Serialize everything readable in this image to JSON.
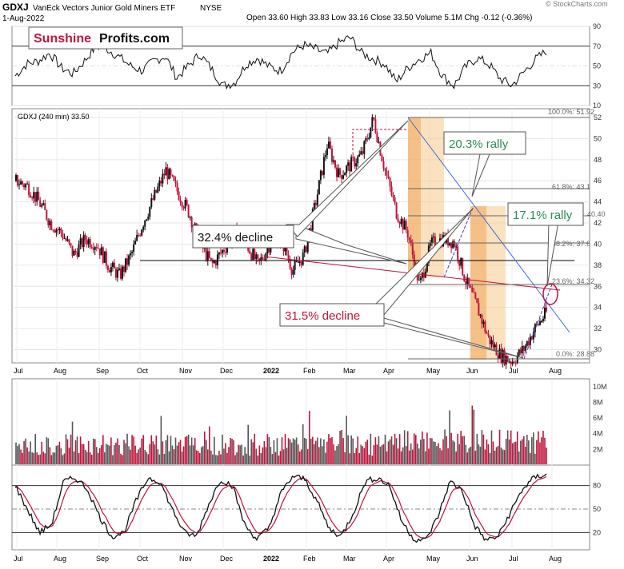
{
  "header": {
    "ticker": "GDXJ",
    "name": "VanEck Vectors Junior Gold Miners ETF",
    "exchange": "NYSE",
    "date": "1-Aug-2022",
    "ohlc": "Open 33.60   High 33.83   Low 33.16   Close 33.50   Volume 5.1M   Chg -0.12 (-0.36%)",
    "source": "© StockCharts.com"
  },
  "logo": {
    "part1": "Sunshine",
    "part2": "Profits.com"
  },
  "price_panel_label": "GDXJ (240 min) 33.50",
  "colors": {
    "up": "#111111",
    "down": "#c0143c",
    "rsi_line": "#111111",
    "stoch_fast": "#111111",
    "stoch_slow": "#c0143c",
    "trend_blue": "#3a6fd8",
    "support_red": "#c0143c",
    "shade": "#f5c88a",
    "shade_dark": "#f0a050",
    "rally_green": "#2e8b57"
  },
  "annotations": {
    "decline1": "32.4% decline",
    "decline2": "31.5% decline",
    "rally1": "20.3% rally",
    "rally2": "17.1% rally",
    "fib_100": "100.0%: 51.92",
    "fib_618": "61.8%: 43.1",
    "fib_382": "38.2%: 37.6",
    "fib_236": "23.6%: 34.32",
    "fib_0": "0.0%: 28.88",
    "fib_extra": "40.40"
  },
  "chart_data": [
    {
      "type": "line",
      "panel": "RSI",
      "ylim": [
        10,
        90
      ],
      "y_ticks": [
        10,
        30,
        50,
        70,
        90
      ],
      "approx_values": [
        40,
        52,
        55,
        63,
        48,
        42,
        55,
        70,
        67,
        59,
        50,
        45,
        55,
        60,
        38,
        50,
        62,
        47,
        30,
        33,
        52,
        58,
        49,
        45,
        64,
        71,
        67,
        62,
        73,
        79,
        63,
        57,
        52,
        34,
        48,
        57,
        63,
        40,
        30,
        49,
        58,
        52,
        37,
        30,
        43,
        56,
        65
      ]
    },
    {
      "type": "candlestick",
      "panel": "Price",
      "title": "GDXJ (240 min) 33.50",
      "ylim": [
        28,
        52
      ],
      "y_ticks": [
        30,
        32,
        34,
        36,
        38,
        40,
        42,
        44,
        46,
        48,
        50,
        52
      ],
      "x_ticks": [
        "Jul",
        "Aug",
        "Sep",
        "Oct",
        "Nov",
        "Dec",
        "2022",
        "Feb",
        "Mar",
        "Apr",
        "May",
        "Jun",
        "Jul",
        "Aug"
      ],
      "approx_close_path": [
        46.0,
        45.5,
        44.0,
        42.0,
        41.0,
        39.0,
        40.5,
        40.0,
        38.0,
        37.0,
        39.0,
        42.0,
        44.5,
        47.0,
        45.0,
        43.0,
        40.0,
        38.0,
        39.5,
        41.0,
        40.0,
        38.0,
        40.0,
        40.5,
        37.5,
        39.0,
        44.0,
        49.5,
        46.5,
        47.5,
        48.5,
        51.9,
        47.0,
        43.0,
        41.0,
        36.0,
        40.0,
        40.5,
        40.2,
        36.5,
        34.0,
        31.0,
        29.5,
        28.9,
        30.0,
        32.0,
        33.5
      ]
    },
    {
      "type": "bar",
      "panel": "Volume",
      "ylim": [
        0,
        11000000
      ],
      "y_tick_labels": [
        "2M",
        "4M",
        "6M",
        "8M",
        "10M"
      ],
      "y_ticks": [
        2000000,
        4000000,
        6000000,
        8000000,
        10000000
      ]
    },
    {
      "type": "line",
      "panel": "Stochastic",
      "ylim": [
        0,
        100
      ],
      "y_ticks": [
        20,
        50,
        80
      ],
      "approx_values": [
        80,
        50,
        20,
        30,
        85,
        90,
        75,
        40,
        15,
        20,
        60,
        90,
        85,
        50,
        20,
        15,
        55,
        88,
        80,
        30,
        12,
        25,
        70,
        92,
        88,
        60,
        25,
        15,
        45,
        85,
        90,
        80,
        35,
        12,
        10,
        40,
        85,
        75,
        30,
        10,
        15,
        45,
        75,
        90,
        95
      ]
    }
  ],
  "x_axis_labels": [
    "Jul",
    "Aug",
    "Sep",
    "Oct",
    "Nov",
    "Dec",
    "2022",
    "Feb",
    "Mar",
    "Apr",
    "May",
    "Jun",
    "Jul",
    "Aug"
  ]
}
